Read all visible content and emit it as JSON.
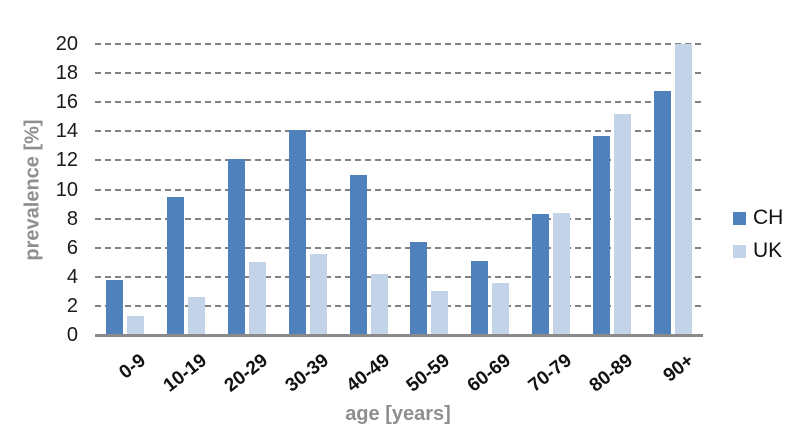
{
  "chart_data": {
    "type": "bar",
    "title": "",
    "xlabel": "age [years]",
    "ylabel": "prevalence [%]",
    "categories": [
      "0-9",
      "10-19",
      "20-29",
      "30-39",
      "40-49",
      "50-59",
      "60-69",
      "70-79",
      "80-89",
      "90+"
    ],
    "series": [
      {
        "name": "CH",
        "color": "#4F81BD",
        "values": [
          3.8,
          9.5,
          12.1,
          14.1,
          11.0,
          6.4,
          5.1,
          8.3,
          13.7,
          16.8
        ]
      },
      {
        "name": "UK",
        "color": "#C3D4E9",
        "values": [
          1.3,
          2.6,
          5.0,
          5.6,
          4.2,
          3.0,
          3.6,
          8.4,
          15.2,
          20.0
        ]
      }
    ],
    "ylim": [
      0,
      20
    ],
    "yticks": [
      0,
      2,
      4,
      6,
      8,
      10,
      12,
      14,
      16,
      18,
      20
    ],
    "grid": "horizontal-dashed",
    "legend_position": "right"
  },
  "styles": {
    "grid_color": "#828282",
    "axis_color": "#8a8a8a",
    "tick_color": "#1a1a1a",
    "axis_title_color": "#8f8f8f",
    "background": "#ffffff"
  }
}
